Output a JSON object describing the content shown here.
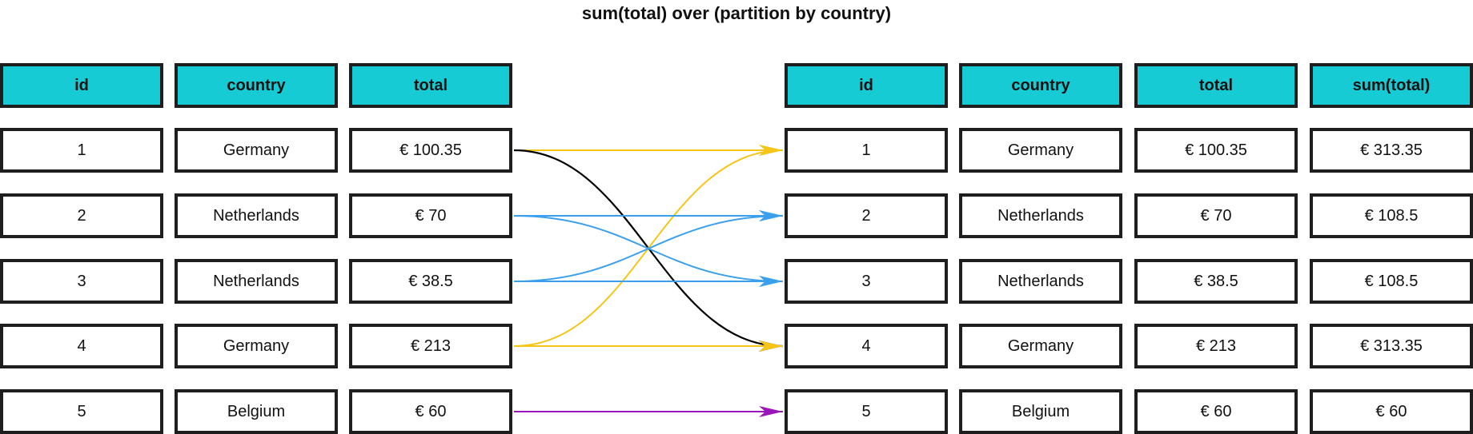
{
  "title": "sum(total) over (partition by country)",
  "left_table": {
    "headers": [
      "id",
      "country",
      "total"
    ],
    "rows": [
      [
        "1",
        "Germany",
        "€ 100.35"
      ],
      [
        "2",
        "Netherlands",
        "€ 70"
      ],
      [
        "3",
        "Netherlands",
        "€ 38.5"
      ],
      [
        "4",
        "Germany",
        "€ 213"
      ],
      [
        "5",
        "Belgium",
        "€ 60"
      ]
    ]
  },
  "right_table": {
    "headers": [
      "id",
      "country",
      "total",
      "sum(total)"
    ],
    "rows": [
      [
        "1",
        "Germany",
        "€ 100.35",
        "€ 313.35"
      ],
      [
        "2",
        "Netherlands",
        "€ 70",
        "€ 108.5"
      ],
      [
        "3",
        "Netherlands",
        "€ 38.5",
        "€ 108.5"
      ],
      [
        "4",
        "Germany",
        "€ 213",
        "€ 313.35"
      ],
      [
        "5",
        "Belgium",
        "€ 60",
        "€ 60"
      ]
    ]
  },
  "colors": {
    "header_fill": "#16cbd4",
    "border": "#1e1e1e",
    "germany": "#f5c518",
    "germany_cross": "#000000",
    "netherlands": "#3aa0ee",
    "belgium": "#9b16b8"
  },
  "arrows": [
    {
      "from_row": 1,
      "to_row": 1,
      "partition": "Germany",
      "color_key": "germany"
    },
    {
      "from_row": 1,
      "to_row": 4,
      "partition": "Germany",
      "color_key": "germany_cross"
    },
    {
      "from_row": 4,
      "to_row": 4,
      "partition": "Germany",
      "color_key": "germany"
    },
    {
      "from_row": 4,
      "to_row": 1,
      "partition": "Germany",
      "color_key": "germany"
    },
    {
      "from_row": 2,
      "to_row": 2,
      "partition": "Netherlands",
      "color_key": "netherlands"
    },
    {
      "from_row": 2,
      "to_row": 3,
      "partition": "Netherlands",
      "color_key": "netherlands"
    },
    {
      "from_row": 3,
      "to_row": 3,
      "partition": "Netherlands",
      "color_key": "netherlands"
    },
    {
      "from_row": 3,
      "to_row": 2,
      "partition": "Netherlands",
      "color_key": "netherlands"
    },
    {
      "from_row": 5,
      "to_row": 5,
      "partition": "Belgium",
      "color_key": "belgium"
    }
  ]
}
